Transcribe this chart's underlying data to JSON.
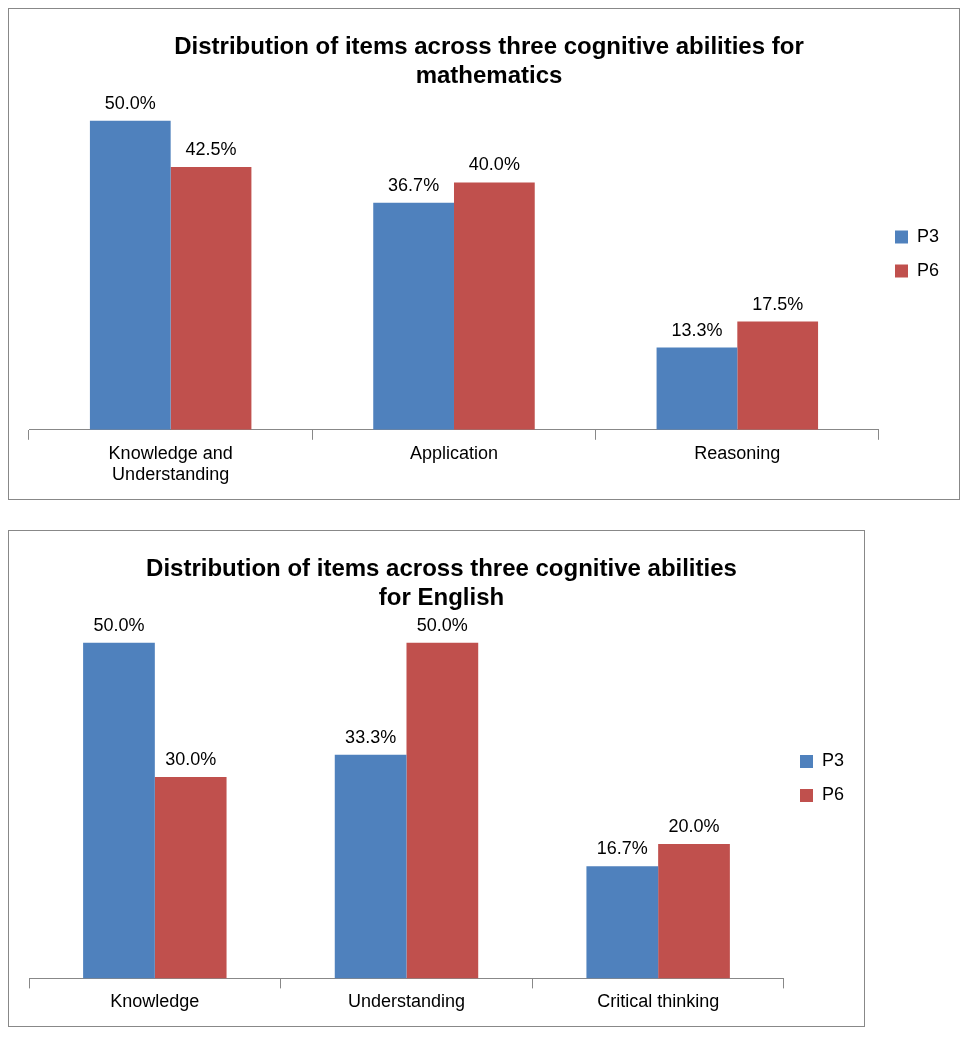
{
  "chart_data": [
    {
      "type": "bar",
      "title": "Distribution of items across three cognitive abilities for mathematics",
      "categories": [
        "Knowledge and Understanding",
        "Application",
        "Reasoning"
      ],
      "series": [
        {
          "name": "P3",
          "color": "#4f81bd",
          "values": [
            50.0,
            36.7,
            13.3
          ],
          "value_labels": [
            "50.0%",
            "36.7%",
            "13.3%"
          ]
        },
        {
          "name": "P6",
          "color": "#c0504d",
          "values": [
            42.5,
            40.0,
            17.5
          ],
          "value_labels": [
            "42.5%",
            "40.0%",
            "17.5%"
          ]
        }
      ],
      "tick_labels": "x",
      "legend": "right"
    },
    {
      "type": "bar",
      "title": "Distribution of items across three cognitive abilities for English",
      "categories": [
        "Knowledge",
        "Understanding",
        "Critical thinking"
      ],
      "series": [
        {
          "name": "P3",
          "color": "#4f81bd",
          "values": [
            50.0,
            33.3,
            16.7
          ],
          "value_labels": [
            "50.0%",
            "33.3%",
            "16.7%"
          ]
        },
        {
          "name": "P6",
          "color": "#c0504d",
          "values": [
            30.0,
            50.0,
            20.0
          ],
          "value_labels": [
            "30.0%",
            "50.0%",
            "20.0%"
          ]
        }
      ],
      "tick_labels": "x",
      "legend": "right"
    }
  ]
}
